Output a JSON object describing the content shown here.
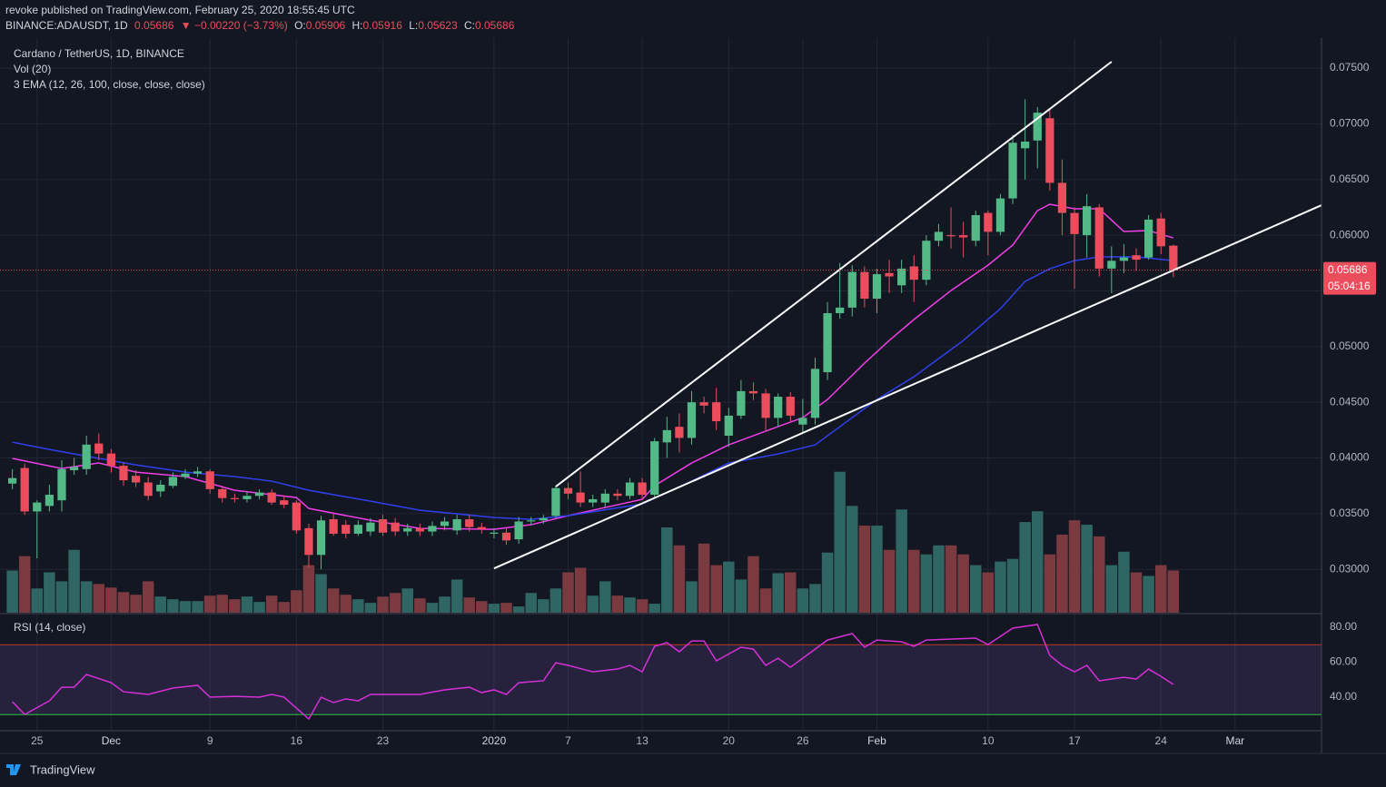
{
  "header": {
    "publisher": "revoke published on TradingView.com, February 25, 2020 18:55:45 UTC",
    "symbol": "BINANCE:ADAUSDT, 1D",
    "last": "0.05686",
    "change": "▼ −0.00220 (−3.73%)",
    "ohlc": [
      {
        "key": "O:",
        "value": "0.05906"
      },
      {
        "key": "H:",
        "value": "0.05916"
      },
      {
        "key": "L:",
        "value": "0.05623"
      },
      {
        "key": "C:",
        "value": "0.05686"
      }
    ]
  },
  "footer": {
    "brand": "TradingView"
  },
  "chart_data": [
    {
      "type": "candlestick",
      "title": "Cardano / TetherUS, 1D, BINANCE",
      "indicators": [
        "Vol (20)",
        "3 EMA (12, 26, 100, close, close, close)"
      ],
      "x": [
        "2019-11-23",
        "2019-11-24",
        "2019-11-25",
        "2019-11-26",
        "2019-11-27",
        "2019-11-28",
        "2019-11-29",
        "2019-11-30",
        "2019-12-01",
        "2019-12-02",
        "2019-12-03",
        "2019-12-04",
        "2019-12-05",
        "2019-12-06",
        "2019-12-07",
        "2019-12-08",
        "2019-12-09",
        "2019-12-10",
        "2019-12-11",
        "2019-12-12",
        "2019-12-13",
        "2019-12-14",
        "2019-12-15",
        "2019-12-16",
        "2019-12-17",
        "2019-12-18",
        "2019-12-19",
        "2019-12-20",
        "2019-12-21",
        "2019-12-22",
        "2019-12-23",
        "2019-12-24",
        "2019-12-25",
        "2019-12-26",
        "2019-12-27",
        "2019-12-28",
        "2019-12-29",
        "2019-12-30",
        "2019-12-31",
        "2020-01-01",
        "2020-01-02",
        "2020-01-03",
        "2020-01-04",
        "2020-01-05",
        "2020-01-06",
        "2020-01-07",
        "2020-01-08",
        "2020-01-09",
        "2020-01-10",
        "2020-01-11",
        "2020-01-12",
        "2020-01-13",
        "2020-01-14",
        "2020-01-15",
        "2020-01-16",
        "2020-01-17",
        "2020-01-18",
        "2020-01-19",
        "2020-01-20",
        "2020-01-21",
        "2020-01-22",
        "2020-01-23",
        "2020-01-24",
        "2020-01-25",
        "2020-01-26",
        "2020-01-27",
        "2020-01-28",
        "2020-01-29",
        "2020-01-30",
        "2020-01-31",
        "2020-02-01",
        "2020-02-02",
        "2020-02-03",
        "2020-02-04",
        "2020-02-05",
        "2020-02-06",
        "2020-02-07",
        "2020-02-08",
        "2020-02-09",
        "2020-02-10",
        "2020-02-11",
        "2020-02-12",
        "2020-02-13",
        "2020-02-14",
        "2020-02-15",
        "2020-02-16",
        "2020-02-17",
        "2020-02-18",
        "2020-02-19",
        "2020-02-20",
        "2020-02-21",
        "2020-02-22",
        "2020-02-23",
        "2020-02-24",
        "2020-02-25"
      ],
      "open": [
        0.0377,
        0.0391,
        0.0352,
        0.0357,
        0.0362,
        0.0389,
        0.039,
        0.0413,
        0.0404,
        0.0393,
        0.0384,
        0.0378,
        0.037,
        0.0375,
        0.0383,
        0.0386,
        0.0388,
        0.0372,
        0.0364,
        0.0363,
        0.0366,
        0.0369,
        0.0362,
        0.036,
        0.0337,
        0.0313,
        0.0345,
        0.034,
        0.0332,
        0.0334,
        0.0345,
        0.0342,
        0.0334,
        0.0337,
        0.0334,
        0.0339,
        0.0335,
        0.0345,
        0.0338,
        0.0332,
        0.0333,
        0.0327,
        0.0343,
        0.0344,
        0.0348,
        0.0373,
        0.0369,
        0.036,
        0.036,
        0.0368,
        0.0366,
        0.0378,
        0.0367,
        0.0414,
        0.0428,
        0.0418,
        0.045,
        0.045,
        0.042,
        0.0438,
        0.046,
        0.0458,
        0.0436,
        0.0455,
        0.043,
        0.0436,
        0.0477,
        0.053,
        0.0535,
        0.0567,
        0.0543,
        0.0566,
        0.0555,
        0.0572,
        0.056,
        0.0595,
        0.06,
        0.06,
        0.0595,
        0.062,
        0.0603,
        0.0633,
        0.0678,
        0.0685,
        0.0705,
        0.0647,
        0.062,
        0.06,
        0.0625,
        0.057,
        0.0577,
        0.0582,
        0.058,
        0.0615,
        0.05906
      ],
      "high": [
        0.039,
        0.0395,
        0.0362,
        0.0376,
        0.0398,
        0.04,
        0.042,
        0.0422,
        0.0408,
        0.0396,
        0.0389,
        0.0383,
        0.038,
        0.0387,
        0.039,
        0.0392,
        0.039,
        0.0375,
        0.0368,
        0.037,
        0.0372,
        0.0372,
        0.0366,
        0.0362,
        0.0341,
        0.0348,
        0.035,
        0.0344,
        0.0344,
        0.0346,
        0.0349,
        0.0346,
        0.0341,
        0.0341,
        0.0343,
        0.0347,
        0.0349,
        0.0349,
        0.0342,
        0.0337,
        0.0337,
        0.0347,
        0.0347,
        0.0349,
        0.0375,
        0.0378,
        0.0388,
        0.0367,
        0.0372,
        0.0372,
        0.0382,
        0.0382,
        0.0418,
        0.0437,
        0.044,
        0.046,
        0.0455,
        0.0463,
        0.0445,
        0.047,
        0.0468,
        0.0462,
        0.0458,
        0.0459,
        0.0453,
        0.049,
        0.054,
        0.0575,
        0.0573,
        0.0572,
        0.057,
        0.0578,
        0.0578,
        0.0582,
        0.06,
        0.061,
        0.0625,
        0.0612,
        0.0622,
        0.0622,
        0.0637,
        0.069,
        0.0722,
        0.0715,
        0.0713,
        0.0668,
        0.0625,
        0.0637,
        0.0628,
        0.059,
        0.0592,
        0.0588,
        0.0618,
        0.062,
        0.05916
      ],
      "low": [
        0.0372,
        0.0349,
        0.031,
        0.0352,
        0.0352,
        0.0385,
        0.0385,
        0.0398,
        0.0387,
        0.0375,
        0.0374,
        0.0362,
        0.0365,
        0.0373,
        0.0381,
        0.0383,
        0.0368,
        0.036,
        0.036,
        0.036,
        0.0363,
        0.0358,
        0.0355,
        0.0332,
        0.0302,
        0.03,
        0.033,
        0.0328,
        0.033,
        0.033,
        0.033,
        0.033,
        0.033,
        0.033,
        0.033,
        0.0335,
        0.0331,
        0.0334,
        0.0332,
        0.0328,
        0.0322,
        0.0323,
        0.034,
        0.0341,
        0.0346,
        0.0363,
        0.0356,
        0.0356,
        0.0356,
        0.0362,
        0.0363,
        0.0363,
        0.0365,
        0.04,
        0.0405,
        0.0412,
        0.044,
        0.0425,
        0.041,
        0.0435,
        0.0452,
        0.0425,
        0.0428,
        0.0432,
        0.0423,
        0.043,
        0.047,
        0.0525,
        0.0527,
        0.0535,
        0.053,
        0.0548,
        0.0548,
        0.054,
        0.0555,
        0.059,
        0.0588,
        0.058,
        0.059,
        0.0582,
        0.06,
        0.0628,
        0.065,
        0.066,
        0.064,
        0.06,
        0.0552,
        0.058,
        0.0563,
        0.0548,
        0.0566,
        0.0568,
        0.0578,
        0.0583,
        0.05623
      ],
      "close": [
        0.0382,
        0.0352,
        0.036,
        0.0367,
        0.039,
        0.0392,
        0.0412,
        0.0404,
        0.0393,
        0.038,
        0.0378,
        0.0366,
        0.0376,
        0.0383,
        0.0386,
        0.0388,
        0.0372,
        0.0364,
        0.0363,
        0.0366,
        0.0369,
        0.036,
        0.0358,
        0.0335,
        0.0313,
        0.0344,
        0.0332,
        0.0332,
        0.034,
        0.0342,
        0.0333,
        0.0334,
        0.0337,
        0.0334,
        0.0339,
        0.0343,
        0.0345,
        0.0338,
        0.0336,
        0.0333,
        0.0326,
        0.0343,
        0.0344,
        0.0346,
        0.0373,
        0.0368,
        0.036,
        0.0363,
        0.0368,
        0.0366,
        0.0378,
        0.0367,
        0.0415,
        0.0425,
        0.0418,
        0.045,
        0.0447,
        0.0433,
        0.0438,
        0.046,
        0.0458,
        0.0436,
        0.0455,
        0.0438,
        0.0436,
        0.048,
        0.053,
        0.0535,
        0.0567,
        0.0543,
        0.0565,
        0.0563,
        0.057,
        0.056,
        0.0595,
        0.0603,
        0.0599,
        0.0598,
        0.0618,
        0.0603,
        0.0633,
        0.0683,
        0.0684,
        0.071,
        0.0647,
        0.062,
        0.0601,
        0.0626,
        0.057,
        0.0577,
        0.058,
        0.0578,
        0.0614,
        0.059,
        0.05686
      ],
      "up_color": "#53b987",
      "down_color": "#eb4d5c",
      "volume": [
        47,
        63,
        27,
        45,
        35,
        70,
        35,
        32,
        28,
        23,
        20,
        35,
        18,
        15,
        13,
        13,
        19,
        20,
        15,
        18,
        12,
        19,
        12,
        25,
        53,
        43,
        27,
        20,
        15,
        11,
        18,
        22,
        27,
        16,
        11,
        18,
        37,
        17,
        13,
        10,
        11,
        7,
        22,
        15,
        27,
        45,
        50,
        19,
        35,
        19,
        17,
        15,
        10,
        95,
        75,
        35,
        77,
        53,
        57,
        37,
        63,
        27,
        44,
        45,
        27,
        32,
        67,
        157,
        119,
        97,
        97,
        70,
        115,
        70,
        65,
        75,
        75,
        65,
        53,
        45,
        57,
        60,
        101,
        113,
        65,
        87,
        103,
        98,
        85,
        53,
        68,
        45,
        41,
        53,
        47
      ],
      "volume_ylim": [
        0,
        640
      ],
      "volume_up_color": "#2f6663",
      "volume_down_color": "#7a3a3f",
      "series": [
        {
          "color": "#f03ee8",
          "x": [
            "2019-11-23",
            "2019-11-27",
            "2019-11-30",
            "2019-12-03",
            "2019-12-07",
            "2019-12-11",
            "2019-12-16",
            "2019-12-17",
            "2019-12-22",
            "2019-12-26",
            "2020-01-01",
            "2020-01-04",
            "2020-01-07",
            "2020-01-13",
            "2020-01-14",
            "2020-01-17",
            "2020-01-20",
            "2020-01-24",
            "2020-01-26",
            "2020-01-28",
            "2020-01-31",
            "2020-02-02",
            "2020-02-04",
            "2020-02-07",
            "2020-02-10",
            "2020-02-12",
            "2020-02-14",
            "2020-02-15",
            "2020-02-17",
            "2020-02-19",
            "2020-02-21",
            "2020-02-23",
            "2020-02-25"
          ],
          "values": [
            0.03996,
            0.03906,
            0.03955,
            0.03873,
            0.03833,
            0.0371,
            0.03645,
            0.03547,
            0.03441,
            0.03368,
            0.0336,
            0.03401,
            0.03482,
            0.03629,
            0.03751,
            0.03955,
            0.04118,
            0.04282,
            0.04362,
            0.04525,
            0.04851,
            0.05055,
            0.05243,
            0.05503,
            0.05731,
            0.05911,
            0.0622,
            0.06278,
            0.06237,
            0.06237,
            0.06033,
            0.06041,
            0.05976
          ]
        },
        {
          "color": "#3040ee",
          "x": [
            "2019-11-23",
            "2019-11-26",
            "2019-11-30",
            "2019-12-03",
            "2019-12-07",
            "2019-12-11",
            "2019-12-14",
            "2019-12-17",
            "2019-12-22",
            "2019-12-26",
            "2020-01-01",
            "2020-01-04",
            "2020-01-07",
            "2020-01-13",
            "2020-01-17",
            "2020-01-20",
            "2020-01-24",
            "2020-01-27",
            "2020-01-29",
            "2020-02-01",
            "2020-02-04",
            "2020-02-08",
            "2020-02-11",
            "2020-02-13",
            "2020-02-15",
            "2020-02-17",
            "2020-02-19",
            "2020-02-22",
            "2020-02-25"
          ],
          "values": [
            0.04142,
            0.04077,
            0.03996,
            0.03938,
            0.03873,
            0.03833,
            0.03792,
            0.0371,
            0.03612,
            0.03531,
            0.03466,
            0.03449,
            0.03482,
            0.03588,
            0.03792,
            0.03955,
            0.04036,
            0.04118,
            0.04281,
            0.04525,
            0.04729,
            0.05055,
            0.0534,
            0.05585,
            0.05699,
            0.05772,
            0.05805,
            0.05805,
            0.05772
          ]
        }
      ],
      "trendlines": [
        {
          "x": [
            "2020-01-06",
            "2020-02-20"
          ],
          "y": [
            0.03743,
            0.07557
          ]
        },
        {
          "x": [
            "2020-01-01",
            "2020-03-08"
          ],
          "y": [
            0.03009,
            0.06269
          ]
        }
      ],
      "countdown": "05:04:16",
      "xlim": [
        "2019-11-22",
        "2020-03-08"
      ],
      "ylim": [
        0.02611,
        0.07769
      ],
      "yticks": [
        {
          "value": 0.03,
          "label": "0.03000"
        },
        {
          "value": 0.035,
          "label": "0.03500"
        },
        {
          "value": 0.04,
          "label": "0.04000"
        },
        {
          "value": 0.045,
          "label": "0.04500"
        },
        {
          "value": 0.05,
          "label": "0.05000"
        },
        {
          "value": 0.055,
          "label": "0.05500"
        },
        {
          "value": 0.06,
          "label": "0.06000"
        },
        {
          "value": 0.065,
          "label": "0.06500"
        },
        {
          "value": 0.07,
          "label": "0.07000"
        },
        {
          "value": 0.075,
          "label": "0.07500"
        }
      ],
      "xticks": [
        {
          "value": "2019-11-25",
          "label": "25"
        },
        {
          "value": "2019-12-01",
          "label": "Dec"
        },
        {
          "value": "2019-12-09",
          "label": "9"
        },
        {
          "value": "2019-12-16",
          "label": "16"
        },
        {
          "value": "2019-12-23",
          "label": "23"
        },
        {
          "value": "2020-01-01",
          "label": "2020"
        },
        {
          "value": "2020-01-07",
          "label": "7"
        },
        {
          "value": "2020-01-13",
          "label": "13"
        },
        {
          "value": "2020-01-20",
          "label": "20"
        },
        {
          "value": "2020-01-26",
          "label": "26"
        },
        {
          "value": "2020-02-01",
          "label": "Feb"
        },
        {
          "value": "2020-02-10",
          "label": "10"
        },
        {
          "value": "2020-02-17",
          "label": "17"
        },
        {
          "value": "2020-02-24",
          "label": "24"
        },
        {
          "value": "2020-03-01",
          "label": "Mar"
        }
      ],
      "grid": true
    },
    {
      "type": "line",
      "title": "RSI (14, close)",
      "color": "#d62fd6",
      "x": [
        "2019-11-23",
        "2019-11-24",
        "2019-11-26",
        "2019-11-27",
        "2019-11-28",
        "2019-11-29",
        "2019-12-01",
        "2019-12-02",
        "2019-12-04",
        "2019-12-06",
        "2019-12-08",
        "2019-12-09",
        "2019-12-11",
        "2019-12-13",
        "2019-12-14",
        "2019-12-15",
        "2019-12-17",
        "2019-12-18",
        "2019-12-19",
        "2019-12-20",
        "2019-12-21",
        "2019-12-22",
        "2019-12-24",
        "2019-12-26",
        "2019-12-28",
        "2019-12-30",
        "2019-12-31",
        "2020-01-01",
        "2020-01-02",
        "2020-01-03",
        "2020-01-05",
        "2020-01-06",
        "2020-01-07",
        "2020-01-09",
        "2020-01-11",
        "2020-01-12",
        "2020-01-13",
        "2020-01-14",
        "2020-01-15",
        "2020-01-16",
        "2020-01-17",
        "2020-01-18",
        "2020-01-19",
        "2020-01-21",
        "2020-01-22",
        "2020-01-23",
        "2020-01-24",
        "2020-01-25",
        "2020-01-27",
        "2020-01-28",
        "2020-01-30",
        "2020-01-31",
        "2020-02-01",
        "2020-02-03",
        "2020-02-04",
        "2020-02-05",
        "2020-02-09",
        "2020-02-10",
        "2020-02-12",
        "2020-02-14",
        "2020-02-15",
        "2020-02-16",
        "2020-02-17",
        "2020-02-18",
        "2020-02-19",
        "2020-02-21",
        "2020-02-22",
        "2020-02-23",
        "2020-02-24",
        "2020-02-25"
      ],
      "values": [
        37.4,
        30.1,
        37.9,
        45.7,
        45.7,
        53.0,
        48.3,
        43.1,
        41.6,
        45.2,
        46.8,
        40.0,
        40.5,
        40.0,
        41.6,
        40.0,
        27.5,
        40.0,
        36.9,
        39.0,
        37.9,
        41.6,
        41.6,
        41.6,
        44.2,
        45.7,
        42.6,
        44.2,
        41.6,
        48.3,
        49.4,
        59.7,
        58.2,
        54.5,
        56.1,
        58.2,
        54.5,
        69.1,
        71.2,
        66.0,
        72.2,
        72.2,
        60.8,
        68.6,
        67.5,
        58.2,
        62.3,
        57.1,
        67.5,
        72.7,
        76.4,
        68.6,
        72.7,
        71.7,
        69.1,
        72.7,
        73.8,
        70.1,
        79.5,
        81.6,
        63.9,
        58.2,
        54.5,
        58.2,
        49.4,
        51.4,
        50.4,
        56.1,
        51.9,
        47.3
      ],
      "upper_band": 70,
      "lower_band": 30,
      "upper_color": "#c0392b",
      "lower_color": "#27c93f",
      "ylim": [
        20.8,
        87.3
      ],
      "yticks": [
        {
          "value": 40,
          "label": "40.00"
        },
        {
          "value": 60,
          "label": "60.00"
        },
        {
          "value": 80,
          "label": "80.00"
        }
      ]
    }
  ]
}
